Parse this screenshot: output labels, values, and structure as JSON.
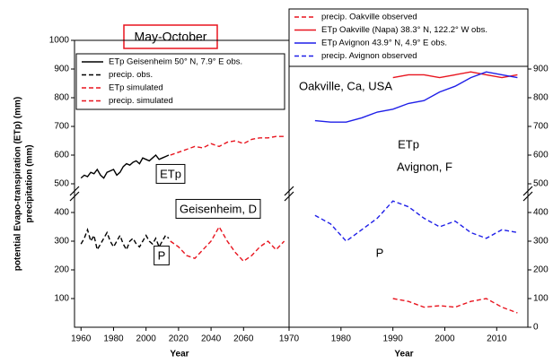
{
  "chart_data": [
    {
      "type": "line",
      "title": "May-October",
      "ylabel": [
        "potential Evapo-transpiration (ETp) (mm)",
        "precipitation (mm)"
      ],
      "xlabel": "Year",
      "xlim": [
        1956,
        2088
      ],
      "xticks": [
        1960,
        1980,
        2000,
        2020,
        2040,
        2060
      ],
      "ylim": [
        0,
        1000
      ],
      "yticks": [
        100,
        200,
        300,
        400,
        500,
        600,
        700,
        800,
        900,
        1000
      ],
      "annotations": [
        "ETp",
        "Geisenheim, D",
        "P"
      ],
      "series": [
        {
          "name": "ETp Geisenheim 50° N, 7.9° E obs.",
          "color": "#000000",
          "dash": false,
          "x": [
            1960,
            1962,
            1964,
            1966,
            1968,
            1970,
            1972,
            1974,
            1976,
            1978,
            1980,
            1982,
            1984,
            1986,
            1988,
            1990,
            1992,
            1994,
            1996,
            1998,
            2000,
            2002,
            2004,
            2006,
            2008,
            2010,
            2012,
            2014
          ],
          "values": [
            520,
            530,
            525,
            540,
            535,
            550,
            530,
            520,
            540,
            545,
            550,
            530,
            540,
            560,
            570,
            565,
            575,
            580,
            570,
            590,
            585,
            580,
            590,
            600,
            585,
            590,
            595,
            600
          ]
        },
        {
          "name": "precip. obs.",
          "color": "#000000",
          "dash": true,
          "x": [
            1960,
            1962,
            1964,
            1966,
            1968,
            1970,
            1972,
            1974,
            1976,
            1978,
            1980,
            1982,
            1984,
            1986,
            1988,
            1990,
            1992,
            1994,
            1996,
            1998,
            2000,
            2002,
            2004,
            2006,
            2008,
            2010,
            2012,
            2014
          ],
          "values": [
            290,
            310,
            340,
            300,
            320,
            270,
            290,
            310,
            330,
            300,
            280,
            300,
            320,
            290,
            270,
            300,
            310,
            290,
            280,
            300,
            320,
            300,
            290,
            310,
            280,
            300,
            320,
            310
          ]
        },
        {
          "name": "ETp simulated",
          "color": "#e8141e",
          "dash": true,
          "x": [
            2015,
            2020,
            2025,
            2030,
            2035,
            2040,
            2045,
            2050,
            2055,
            2060,
            2065,
            2070,
            2075,
            2080,
            2085
          ],
          "values": [
            600,
            610,
            620,
            630,
            625,
            640,
            630,
            645,
            650,
            640,
            655,
            660,
            660,
            665,
            665
          ]
        },
        {
          "name": "precip. simulated",
          "color": "#e8141e",
          "dash": true,
          "x": [
            2015,
            2020,
            2025,
            2030,
            2035,
            2040,
            2045,
            2050,
            2055,
            2060,
            2065,
            2070,
            2075,
            2080,
            2085
          ],
          "values": [
            300,
            280,
            250,
            240,
            270,
            300,
            350,
            300,
            260,
            230,
            250,
            280,
            300,
            270,
            300
          ]
        }
      ]
    },
    {
      "type": "line",
      "xlabel": "Year",
      "xlim": [
        1970,
        2016
      ],
      "xticks": [
        1970,
        1980,
        1990,
        2000,
        2010
      ],
      "ylim": [
        0,
        1000
      ],
      "yticks": [
        0,
        100,
        200,
        300,
        400,
        500,
        600,
        700,
        800,
        900
      ],
      "annotations": [
        "Oakville, Ca, USA",
        "ETp",
        "Avignon, F",
        "P"
      ],
      "series": [
        {
          "name": "precip. Oakville observed",
          "color": "#e8141e",
          "dash": true,
          "x": [
            1990,
            1993,
            1996,
            1999,
            2002,
            2005,
            2008,
            2011,
            2014
          ],
          "values": [
            100,
            90,
            70,
            75,
            70,
            90,
            100,
            70,
            50
          ]
        },
        {
          "name": "ETp Oakville (Napa) 38.3° N, 122.2° W obs.",
          "color": "#e8141e",
          "dash": false,
          "x": [
            1990,
            1993,
            1996,
            1999,
            2002,
            2005,
            2008,
            2011,
            2014
          ],
          "values": [
            870,
            880,
            880,
            870,
            880,
            890,
            880,
            870,
            880
          ]
        },
        {
          "name": "ETp Avignon 43.9° N, 4.9° E obs.",
          "color": "#1f1fe8",
          "dash": false,
          "x": [
            1975,
            1978,
            1981,
            1984,
            1987,
            1990,
            1993,
            1996,
            1999,
            2002,
            2005,
            2008,
            2011,
            2014
          ],
          "values": [
            720,
            715,
            715,
            730,
            750,
            760,
            780,
            790,
            820,
            840,
            870,
            890,
            880,
            870
          ]
        },
        {
          "name": "precip. Avignon observed",
          "color": "#1f1fe8",
          "dash": true,
          "x": [
            1975,
            1978,
            1981,
            1984,
            1987,
            1990,
            1993,
            1996,
            1999,
            2002,
            2005,
            2008,
            2011,
            2014
          ],
          "values": [
            390,
            360,
            300,
            340,
            380,
            440,
            420,
            380,
            350,
            370,
            330,
            310,
            340,
            330
          ]
        }
      ]
    }
  ]
}
